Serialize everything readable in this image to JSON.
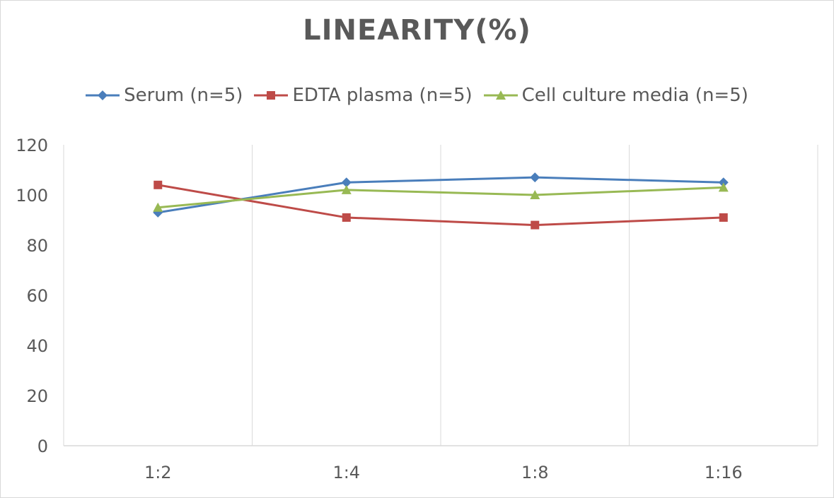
{
  "chart_data": {
    "type": "line",
    "title": "LINEARITY(%)",
    "categories": [
      "1:2",
      "1:4",
      "1:8",
      "1:16"
    ],
    "series": [
      {
        "name": "Serum (n=5)",
        "values": [
          93,
          105,
          107,
          105
        ],
        "color": "#4a7ebb",
        "marker": "diamond"
      },
      {
        "name": "EDTA plasma (n=5)",
        "values": [
          104,
          91,
          88,
          91
        ],
        "color": "#be4b48",
        "marker": "square"
      },
      {
        "name": "Cell culture media (n=5)",
        "values": [
          95,
          102,
          100,
          103
        ],
        "color": "#98b954",
        "marker": "triangle"
      }
    ],
    "y_ticks": [
      "0",
      "20",
      "40",
      "60",
      "80",
      "100",
      "120"
    ],
    "ylim": [
      0,
      120
    ],
    "grid": "vertical",
    "legend_position": "top"
  }
}
